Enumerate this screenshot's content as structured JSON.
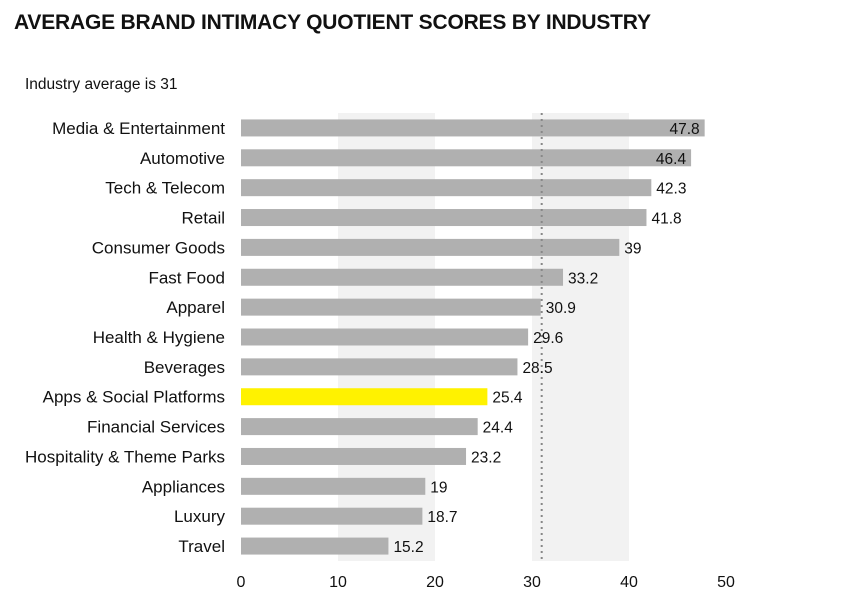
{
  "page": {
    "title": "AVERAGE BRAND INTIMACY QUOTIENT SCORES BY INDUSTRY",
    "subtitle": "Industry average is 31"
  },
  "colors": {
    "bar": "#b0b0b0",
    "highlight": "#fff200",
    "band": "#f2f2f2",
    "text": "#111111",
    "reference_line": "#888888"
  },
  "chart_data": {
    "type": "bar",
    "orientation": "horizontal",
    "title": "AVERAGE BRAND INTIMACY QUOTIENT SCORES BY INDUSTRY",
    "subtitle": "Industry average is 31",
    "categories": [
      "Media & Entertainment",
      "Automotive",
      "Tech & Telecom",
      "Retail",
      "Consumer Goods",
      "Fast Food",
      "Apparel",
      "Health & Hygiene",
      "Beverages",
      "Apps & Social Platforms",
      "Financial Services",
      "Hospitality & Theme Parks",
      "Appliances",
      "Luxury",
      "Travel"
    ],
    "values": [
      47.8,
      46.4,
      42.3,
      41.8,
      39,
      33.2,
      30.9,
      29.6,
      28.5,
      25.4,
      24.4,
      23.2,
      19,
      18.7,
      15.2
    ],
    "value_labels": [
      "47.8",
      "46.4",
      "42.3",
      "41.8",
      "39",
      "33.2",
      "30.9",
      "29.6",
      "28.5",
      "25.4",
      "24.4",
      "23.2",
      "19",
      "18.7",
      "15.2"
    ],
    "highlighted_category": "Apps & Social Platforms",
    "reference_line": 31,
    "xlim": [
      0,
      50
    ],
    "xticks": [
      "0",
      "10",
      "20",
      "30",
      "40",
      "50"
    ],
    "xlabel": "",
    "ylabel": "",
    "grid": false,
    "legend": "none"
  }
}
